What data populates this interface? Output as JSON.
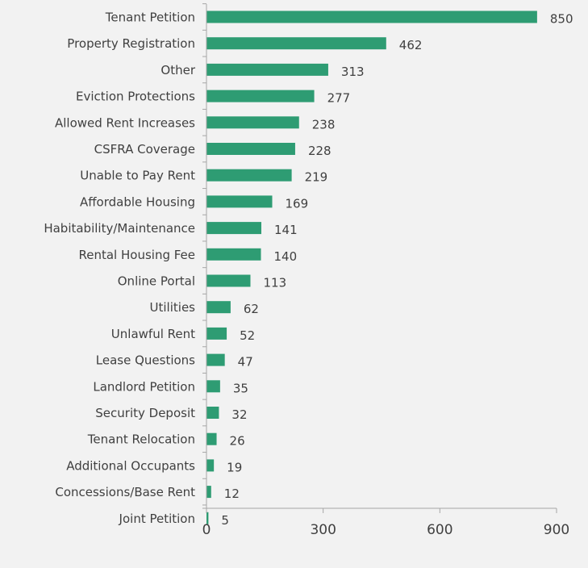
{
  "chart_data": {
    "type": "bar",
    "orientation": "horizontal",
    "title": "",
    "xlabel": "",
    "ylabel": "",
    "categories": [
      "Tenant Petition",
      "Property Registration",
      "Other",
      "Eviction Protections",
      "Allowed Rent Increases",
      "CSFRA Coverage",
      "Unable to Pay Rent",
      "Affordable Housing",
      "Habitability/Maintenance",
      "Rental Housing Fee",
      "Online Portal",
      "Utilities",
      "Unlawful Rent",
      "Lease Questions",
      "Landlord Petition",
      "Security Deposit",
      "Tenant Relocation",
      "Additional Occupants",
      "Concessions/Base Rent",
      "Joint Petition"
    ],
    "values": [
      850,
      462,
      313,
      277,
      238,
      228,
      219,
      169,
      141,
      140,
      113,
      62,
      52,
      47,
      35,
      32,
      26,
      19,
      12,
      5
    ],
    "xlim": [
      0,
      900
    ],
    "xticks": [
      0,
      300,
      600,
      900
    ],
    "data_labels": true,
    "grid": false,
    "colors": {
      "bar": "#2e9c73",
      "axis": "#a6a6a6",
      "text": "#404040",
      "background": "#f2f2f2"
    }
  }
}
